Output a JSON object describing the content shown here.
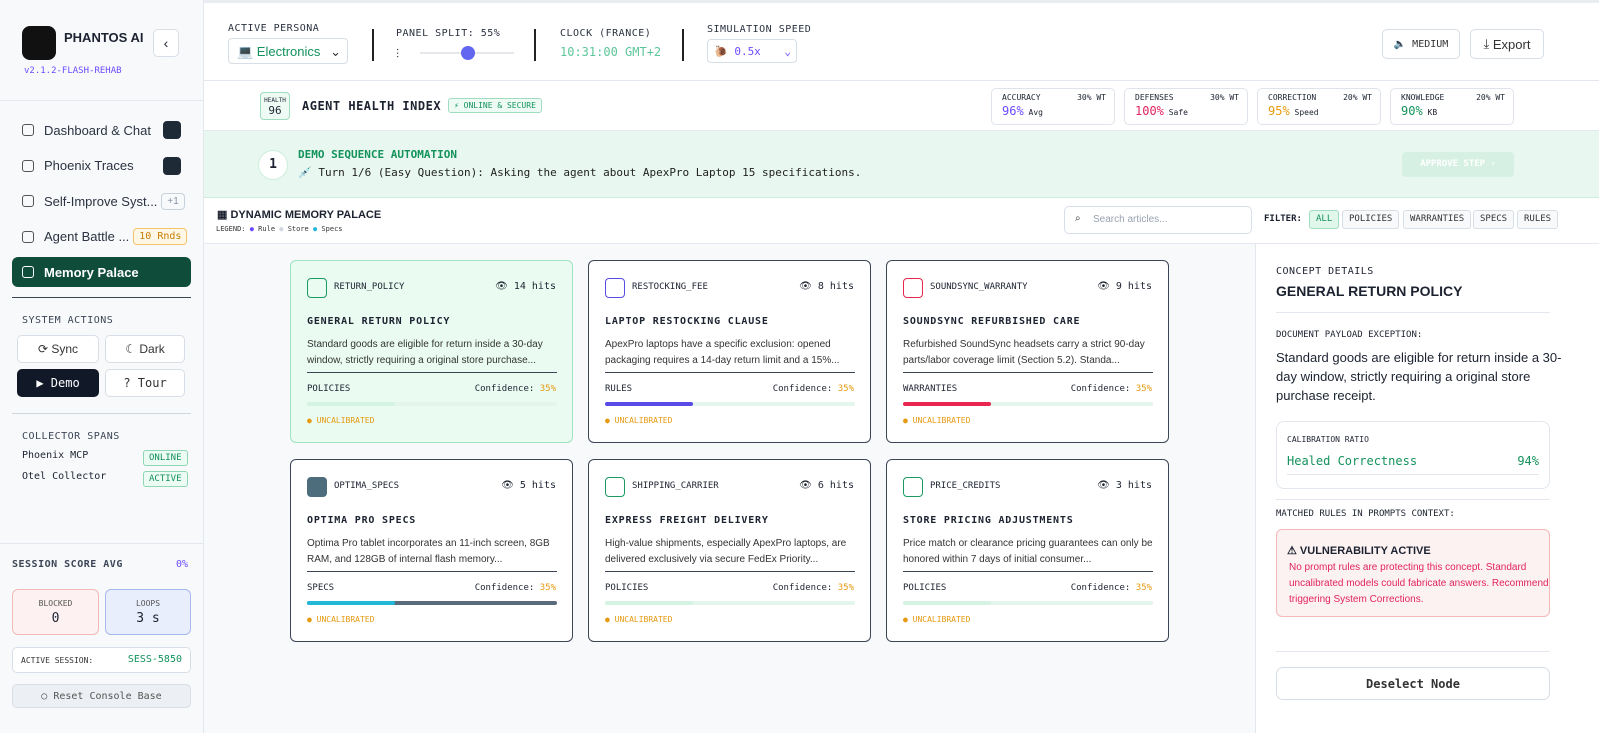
{
  "sidebar": {
    "brand": "PHANTOS AI",
    "version": "v2.1.2-FLASH-REHAB",
    "nav": [
      {
        "label": "Dashboard & Chat",
        "badge": null
      },
      {
        "label": "Phoenix Traces",
        "badge": null
      },
      {
        "label": "Self-Improve Syst...",
        "badge": "+1"
      },
      {
        "label": "Agent Battle ...",
        "badge": "10 Rnds"
      },
      {
        "label": "Memory Palace",
        "badge": null,
        "active": true
      }
    ],
    "system_actions": {
      "title": "SYSTEM ACTIONS",
      "buttons": [
        "Sync",
        "Dark",
        "Demo",
        "Tour"
      ]
    },
    "collector_spans": {
      "title": "COLLECTOR SPANS",
      "items": [
        {
          "name": "Phoenix MCP",
          "status": "ONLINE"
        },
        {
          "name": "Otel Collector",
          "status": "ACTIVE"
        }
      ]
    },
    "session_score": {
      "label": "SESSION SCORE AVG",
      "value": "0%"
    },
    "blocked": {
      "label": "BLOCKED",
      "value": "0"
    },
    "loops": {
      "label": "LOOPS",
      "value": "3 s"
    },
    "active_session": {
      "label": "ACTIVE SESSION:",
      "value": "SESS-5850"
    },
    "reset": "Reset Console Base"
  },
  "topbar": {
    "persona": {
      "label": "ACTIVE PERSONA",
      "value": "💻 Electronics"
    },
    "panel_split": "PANEL SPLIT: 55%",
    "clock": {
      "label": "CLOCK (FRANCE)",
      "value": "10:31:00 GMT+2"
    },
    "speed": {
      "label": "SIMULATION SPEED",
      "value": "🐌 0.5x"
    },
    "volume": "MEDIUM",
    "export": "Export"
  },
  "health": {
    "badge_label": "HEALTH",
    "badge_value": "96",
    "title": "AGENT HEALTH INDEX",
    "status": "⚡ ONLINE & SECURE",
    "metrics": [
      {
        "name": "ACCURACY",
        "weight": "30% WT",
        "value": "96%",
        "note": "Avg",
        "color": "#6d4aff"
      },
      {
        "name": "DEFENSES",
        "weight": "30% WT",
        "value": "100%",
        "note": "Safe",
        "color": "#e0245e"
      },
      {
        "name": "CORRECTION",
        "weight": "20% WT",
        "value": "95%",
        "note": "Speed",
        "color": "#e69a12"
      },
      {
        "name": "KNOWLEDGE",
        "weight": "20% WT",
        "value": "90%",
        "note": "KB",
        "color": "#13925b"
      }
    ]
  },
  "demo": {
    "step": "1",
    "title": "DEMO SEQUENCE AUTOMATION",
    "text": "💉 Turn 1/6 (Easy Question): Asking the agent about ApexPro Laptop 15 specifications.",
    "button": "APPROVE STEP ›"
  },
  "palace": {
    "title": "DYNAMIC MEMORY PALACE",
    "legend_label": "LEGEND:",
    "legend": [
      {
        "name": "Rule",
        "color": "#6d4aff"
      },
      {
        "name": "Store",
        "color": "#cfd6df"
      },
      {
        "name": "Specs",
        "color": "#22b8d8"
      }
    ],
    "search_placeholder": "Search articles...",
    "filter_label": "FILTER:",
    "filters": [
      "ALL",
      "POLICIES",
      "WARRANTIES",
      "SPECS",
      "RULES"
    ],
    "confidence_label": "Confidence:",
    "cards": [
      {
        "id": "RETURN_POLICY",
        "hits": "14 hits",
        "title": "GENERAL RETURN POLICY",
        "text": "Standard goods are eligible for return inside a 30-day window, strictly requiring a original store purchase...",
        "category": "POLICIES",
        "confidence": "35%",
        "status": "UNCALIBRATED",
        "color": "#d4f3e3",
        "icon": "#1a9a62",
        "selected": true
      },
      {
        "id": "RESTOCKING_FEE",
        "hits": "8 hits",
        "title": "LAPTOP RESTOCKING CLAUSE",
        "text": "ApexPro laptops have a specific exclusion: opened packaging requires a 14-day return limit and a 15%...",
        "category": "RULES",
        "confidence": "35%",
        "status": "UNCALIBRATED",
        "color": "#5b4be6",
        "icon": "#5b4be6"
      },
      {
        "id": "SOUNDSYNC_WARRANTY",
        "hits": "9 hits",
        "title": "SOUNDSYNC REFURBISHED CARE",
        "text": "Refurbished SoundSync headsets carry a strict 90-day parts/labor coverage limit (Section 5.2). Standa...",
        "category": "WARRANTIES",
        "confidence": "35%",
        "status": "UNCALIBRATED",
        "color": "#e8264f",
        "icon": "#e8264f"
      },
      {
        "id": "OPTIMA_SPECS",
        "hits": "5 hits",
        "title": "OPTIMA PRO SPECS",
        "text": "Optima Pro tablet incorporates an 11-inch screen, 8GB RAM, and 128GB of internal flash memory...",
        "category": "SPECS",
        "confidence": "35%",
        "status": "UNCALIBRATED",
        "color": "#22b8d8",
        "icon": "#4d6d7c"
      },
      {
        "id": "SHIPPING_CARRIER",
        "hits": "6 hits",
        "title": "EXPRESS FREIGHT DELIVERY",
        "text": "High-value shipments, especially ApexPro laptops, are delivered exclusively via secure FedEx Priority...",
        "category": "POLICIES",
        "confidence": "35%",
        "status": "UNCALIBRATED",
        "color": "#d4f3e3",
        "icon": "#1a9a62"
      },
      {
        "id": "PRICE_CREDITS",
        "hits": "3 hits",
        "title": "STORE PRICING ADJUSTMENTS",
        "text": "Price match or clearance pricing guarantees can only be honored within 7 days of initial consumer...",
        "category": "POLICIES",
        "confidence": "35%",
        "status": "UNCALIBRATED",
        "color": "#d4f3e3",
        "icon": "#1a9a62"
      }
    ]
  },
  "details": {
    "label": "CONCEPT DETAILS",
    "title": "GENERAL RETURN POLICY",
    "payload_label": "DOCUMENT PAYLOAD EXCEPTION:",
    "payload": "Standard goods are eligible for return inside a 30-day window, strictly requiring a original store purchase receipt.",
    "calibration_label": "CALIBRATION RATIO",
    "calibration_name": "Healed Correctness",
    "calibration_value": "94%",
    "rules_label": "MATCHED RULES IN PROMPTS CONTEXT:",
    "alert_title": "VULNERABILITY ACTIVE",
    "alert_text": "No prompt rules are protecting this concept. Standard uncalibrated models could fabricate answers. Recommend triggering System Corrections.",
    "button": "Deselect Node"
  }
}
